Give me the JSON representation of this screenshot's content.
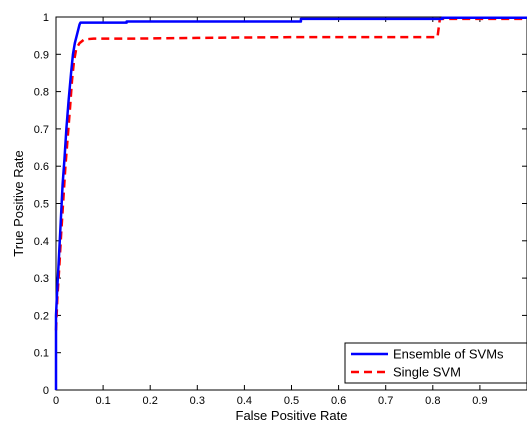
{
  "chart_data": {
    "type": "line",
    "title": "",
    "xlabel": "False Positive Rate",
    "ylabel": "True Positive Rate",
    "xlim": [
      0,
      1
    ],
    "ylim": [
      0,
      1
    ],
    "x_ticks": [
      0,
      0.1,
      0.2,
      0.3,
      0.4,
      0.5,
      0.6,
      0.7,
      0.8,
      0.9
    ],
    "x_tick_labels": [
      "0",
      "0.1",
      "0.2",
      "0.3",
      "0.4",
      "0.5",
      "0.6",
      "0.7",
      "0.8",
      "0.9"
    ],
    "y_ticks": [
      0,
      0.1,
      0.2,
      0.3,
      0.4,
      0.5,
      0.6,
      0.7,
      0.8,
      0.9,
      1
    ],
    "y_tick_labels": [
      "0",
      "0.1",
      "0.2",
      "0.3",
      "0.4",
      "0.5",
      "0.6",
      "0.7",
      "0.8",
      "0.9",
      "1"
    ],
    "grid": false,
    "legend_position": "bottom-right",
    "series": [
      {
        "name": "Ensemble of SVMs",
        "color": "#0000ff",
        "line_style": "solid",
        "points": [
          [
            0,
            0
          ],
          [
            0,
            0.2
          ],
          [
            0.003,
            0.28
          ],
          [
            0.006,
            0.35
          ],
          [
            0.01,
            0.45
          ],
          [
            0.014,
            0.55
          ],
          [
            0.018,
            0.62
          ],
          [
            0.022,
            0.7
          ],
          [
            0.027,
            0.78
          ],
          [
            0.032,
            0.85
          ],
          [
            0.036,
            0.9
          ],
          [
            0.04,
            0.93
          ],
          [
            0.044,
            0.95
          ],
          [
            0.048,
            0.97
          ],
          [
            0.05,
            0.98
          ],
          [
            0.052,
            0.985
          ],
          [
            0.15,
            0.985
          ],
          [
            0.15,
            0.988
          ],
          [
            0.52,
            0.988
          ],
          [
            0.52,
            0.995
          ],
          [
            0.82,
            0.995
          ],
          [
            0.82,
            0.998
          ],
          [
            1,
            0.998
          ],
          [
            1,
            1
          ]
        ]
      },
      {
        "name": "Single SVM",
        "color": "#ff0000",
        "line_style": "dashed",
        "points": [
          [
            0,
            0.16
          ],
          [
            0.003,
            0.25
          ],
          [
            0.007,
            0.33
          ],
          [
            0.011,
            0.42
          ],
          [
            0.016,
            0.52
          ],
          [
            0.02,
            0.6
          ],
          [
            0.025,
            0.68
          ],
          [
            0.03,
            0.76
          ],
          [
            0.034,
            0.83
          ],
          [
            0.038,
            0.88
          ],
          [
            0.043,
            0.915
          ],
          [
            0.05,
            0.93
          ],
          [
            0.06,
            0.94
          ],
          [
            0.08,
            0.942
          ],
          [
            0.16,
            0.942
          ],
          [
            0.3,
            0.944
          ],
          [
            0.5,
            0.946
          ],
          [
            0.6,
            0.946
          ],
          [
            0.81,
            0.946
          ],
          [
            0.815,
            0.995
          ],
          [
            1,
            0.995
          ],
          [
            1,
            1
          ]
        ]
      }
    ]
  }
}
